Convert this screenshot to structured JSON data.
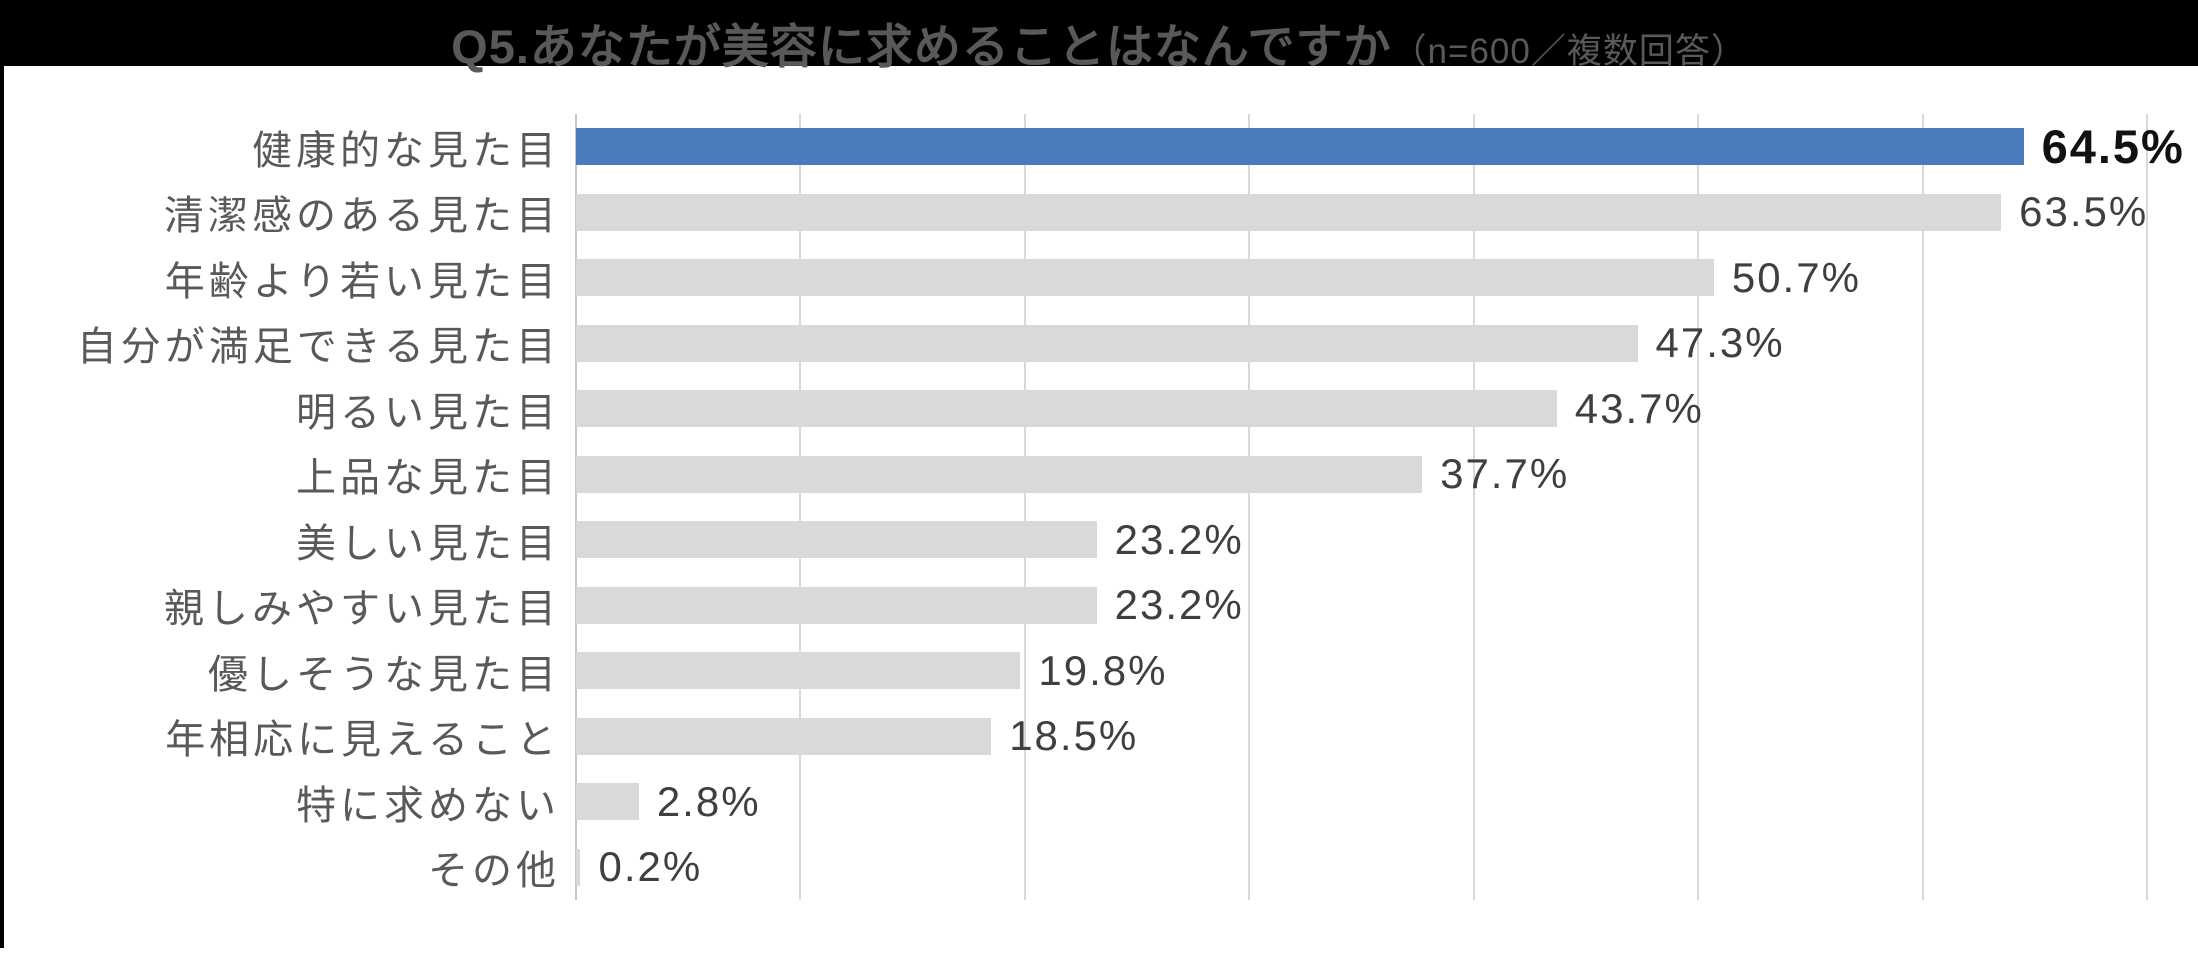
{
  "header": {
    "title": "Q5.あなたが美容に求めることはなんですか",
    "subtitle": "（n=600／複数回答）"
  },
  "chart_data": {
    "type": "bar",
    "orientation": "horizontal",
    "title": "Q5.あなたが美容に求めることはなんですか（n=600／複数回答）",
    "sample_note": "n=600／複数回答",
    "categories": [
      "健康的な見た目",
      "清潔感のある見た目",
      "年齢より若い見た目",
      "自分が満足できる見た目",
      "明るい見た目",
      "上品な見た目",
      "美しい見た目",
      "親しみやすい見た目",
      "優しそうな見た目",
      "年相応に見えること",
      "特に求めない",
      "その他"
    ],
    "values": [
      64.5,
      63.5,
      50.7,
      47.3,
      43.7,
      37.7,
      23.2,
      23.2,
      19.8,
      18.5,
      2.8,
      0.2
    ],
    "value_labels": [
      "64.5%",
      "63.5%",
      "50.7%",
      "47.3%",
      "43.7%",
      "37.7%",
      "23.2%",
      "23.2%",
      "19.8%",
      "18.5%",
      "2.8%",
      "0.2%"
    ],
    "xlim": [
      0,
      70
    ],
    "gridline_step": 10,
    "grid": true,
    "legend": "none",
    "highlight_index": 0,
    "colors": {
      "highlight_bar": "#4a7cbd",
      "bar": "#d9d9d9",
      "gridline": "#d9d9d9",
      "axis_line": "#c6c6c6",
      "category_label": "#595959",
      "value_label": "#3f3f3f",
      "highlight_value_label": "#111111",
      "title_text": "#595959",
      "top_band": "#000000"
    }
  }
}
